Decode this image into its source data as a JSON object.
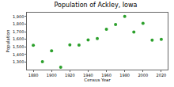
{
  "chart_data": {
    "type": "scatter",
    "title": "Population of Ackley, Iowa",
    "x_label": "Census Year",
    "y_label": "Population",
    "x": [
      1880,
      1890,
      1900,
      1910,
      1920,
      1930,
      1940,
      1950,
      1960,
      1970,
      1980,
      1990,
      2000,
      2010,
      2020
    ],
    "values": [
      1521,
      1304,
      1447,
      1231,
      1525,
      1524,
      1591,
      1608,
      1731,
      1794,
      1900,
      1696,
      1809,
      1589,
      1599
    ],
    "color": "#2ca02c",
    "marker": "circle",
    "xlim": [
      1873,
      2027
    ],
    "xticks": [
      1880,
      1900,
      1920,
      1940,
      1960,
      1980,
      2000,
      2020
    ],
    "ylim": [
      1200,
      1950
    ],
    "yticks": [
      {
        "value": 1300,
        "label": "1,300"
      },
      {
        "value": 1400,
        "label": "1,400"
      },
      {
        "value": 1500,
        "label": "1,500"
      },
      {
        "value": 1600,
        "label": "1,600"
      },
      {
        "value": 1700,
        "label": "1,700"
      },
      {
        "value": 1800,
        "label": "1,800"
      },
      {
        "value": 1900,
        "label": "1,900"
      }
    ],
    "grid": false
  }
}
